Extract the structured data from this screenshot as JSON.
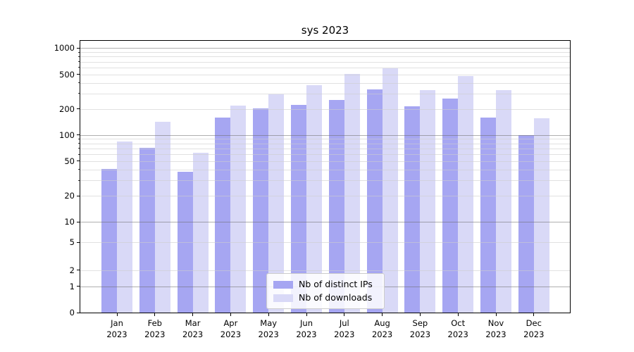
{
  "figure": {
    "title": "sys 2023"
  },
  "chart_data": {
    "type": "bar",
    "title": "sys 2023",
    "categories": [
      "Jan",
      "Feb",
      "Mar",
      "Apr",
      "May",
      "Jun",
      "Jul",
      "Aug",
      "Sep",
      "Oct",
      "Nov",
      "Dec"
    ],
    "x_tick_year": "2023",
    "series": [
      {
        "name": "Nb of distinct IPs",
        "color": "#a6a6f2",
        "values": [
          41,
          71,
          38,
          158,
          203,
          222,
          252,
          337,
          215,
          264,
          160,
          100
        ]
      },
      {
        "name": "Nb of downloads",
        "color": "#d9d9f7",
        "values": [
          84,
          143,
          62,
          218,
          295,
          372,
          505,
          588,
          327,
          478,
          328,
          156
        ]
      }
    ],
    "yscale": "symlog",
    "ylim": [
      0,
      1000
    ],
    "yticks": [
      0,
      1,
      2,
      5,
      10,
      20,
      50,
      100,
      200,
      500,
      1000
    ],
    "grid": true,
    "legend_position": "lower center"
  }
}
